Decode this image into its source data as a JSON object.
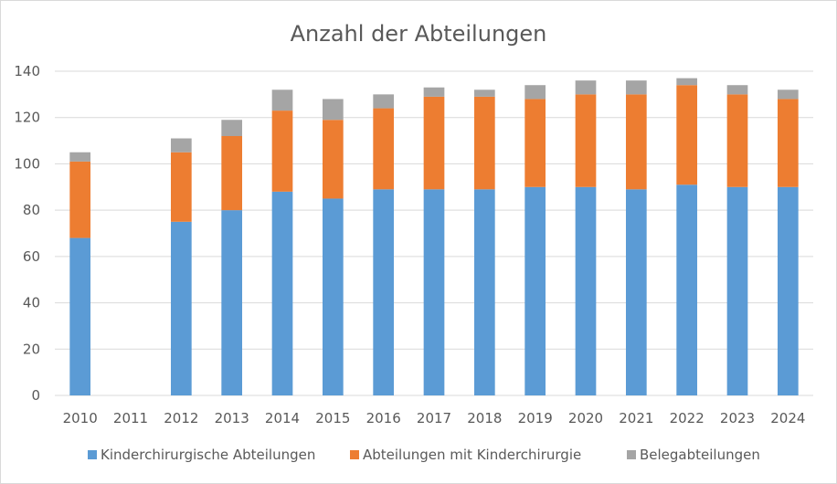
{
  "chart_data": {
    "type": "bar",
    "stacked": true,
    "title": "Anzahl der Abteilungen",
    "xlabel": "",
    "ylabel": "",
    "ylim": [
      0,
      140
    ],
    "yticks": [
      0,
      20,
      40,
      60,
      80,
      100,
      120,
      140
    ],
    "grid": true,
    "legend_position": "bottom",
    "categories": [
      "2010",
      "2011",
      "2012",
      "2013",
      "2014",
      "2015",
      "2016",
      "2017",
      "2018",
      "2019",
      "2020",
      "2021",
      "2022",
      "2023",
      "2024"
    ],
    "series": [
      {
        "name": "Kinderchirurgische Abteilungen",
        "color": "#5b9bd5",
        "values": [
          68,
          0,
          75,
          80,
          88,
          85,
          89,
          89,
          89,
          90,
          90,
          89,
          91,
          90,
          90
        ]
      },
      {
        "name": "Abteilungen mit Kinderchirurgie",
        "color": "#ed7d31",
        "values": [
          33,
          0,
          30,
          32,
          35,
          34,
          35,
          40,
          40,
          38,
          40,
          41,
          43,
          40,
          38
        ]
      },
      {
        "name": "Belegabteilungen",
        "color": "#a5a5a5",
        "values": [
          4,
          0,
          6,
          7,
          9,
          9,
          6,
          4,
          3,
          6,
          6,
          6,
          3,
          4,
          4
        ]
      }
    ]
  }
}
